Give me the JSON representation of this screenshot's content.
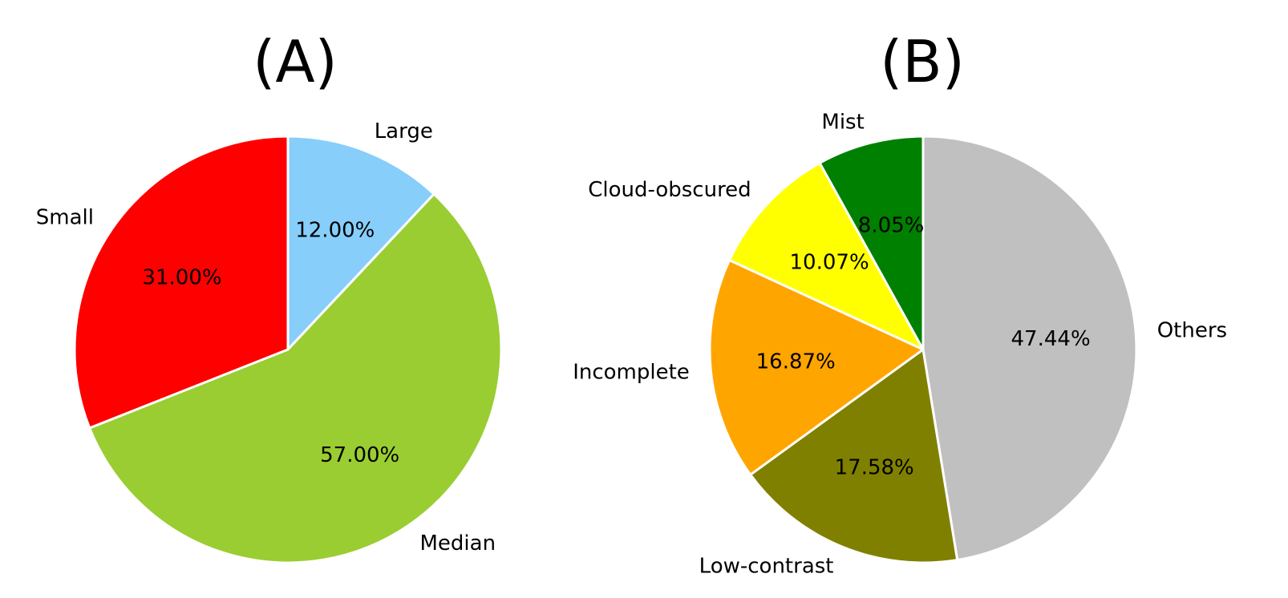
{
  "chart_data": [
    {
      "type": "pie",
      "title": "(A)",
      "start_angle_deg": 90,
      "direction": "clockwise",
      "slices": [
        {
          "label": "Large",
          "value": 12.0,
          "pct_text": "12.00%",
          "color": "#87CEFA"
        },
        {
          "label": "Median",
          "value": 57.0,
          "pct_text": "57.00%",
          "color": "#9ACD32"
        },
        {
          "label": "Small",
          "value": 31.0,
          "pct_text": "31.00%",
          "color": "#FF0000"
        }
      ]
    },
    {
      "type": "pie",
      "title": "(B)",
      "start_angle_deg": 90,
      "direction": "clockwise",
      "slices": [
        {
          "label": "Others",
          "value": 47.44,
          "pct_text": "47.44%",
          "color": "#C0C0C0"
        },
        {
          "label": "Low-contrast",
          "value": 17.58,
          "pct_text": "17.58%",
          "color": "#808000"
        },
        {
          "label": "Incomplete",
          "value": 16.87,
          "pct_text": "16.87%",
          "color": "#FFA500"
        },
        {
          "label": "Cloud-obscured",
          "value": 10.07,
          "pct_text": "10.07%",
          "color": "#FFFF00"
        },
        {
          "label": "Mist",
          "value": 8.05,
          "pct_text": "8.05%",
          "color": "#008000"
        }
      ]
    }
  ]
}
